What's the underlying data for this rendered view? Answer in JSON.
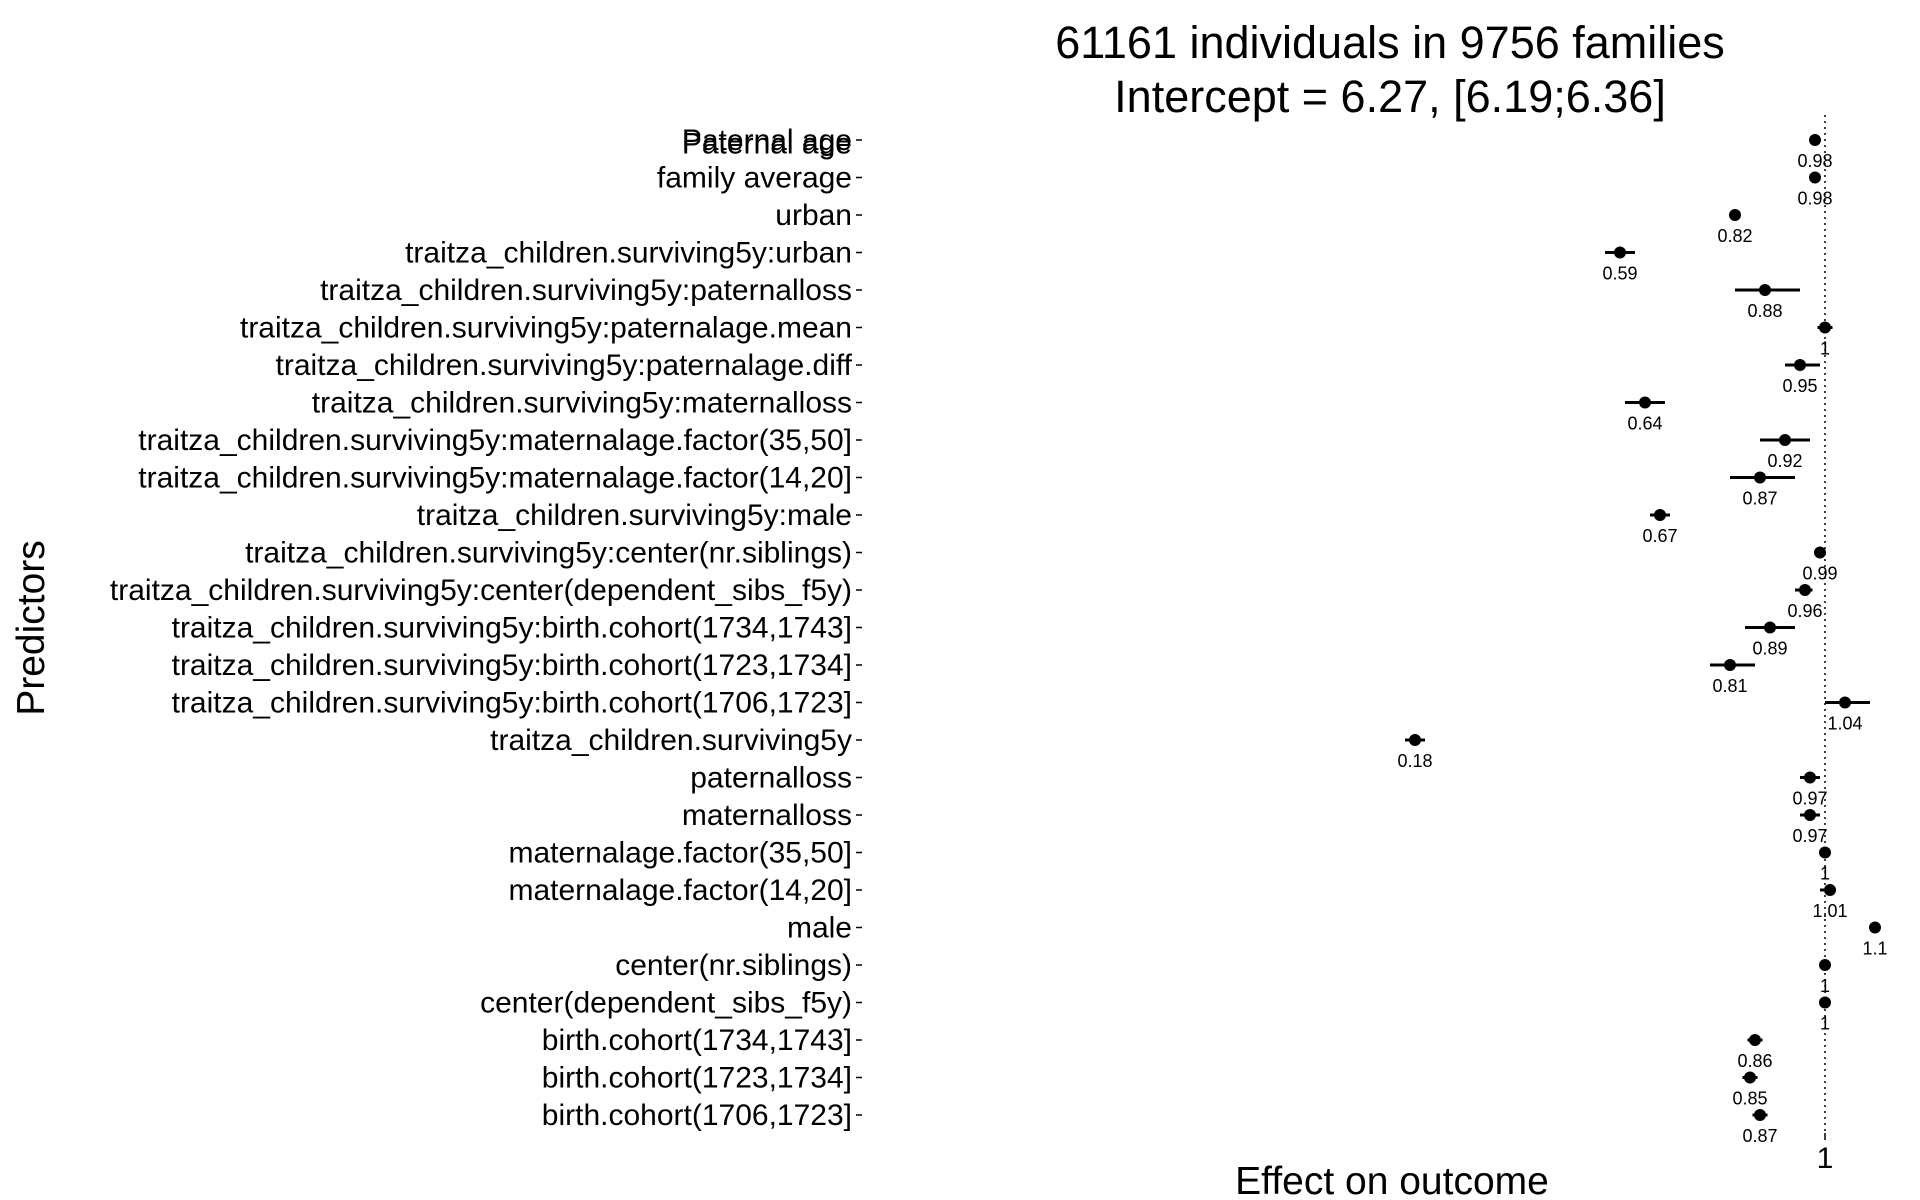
{
  "chart_data": {
    "type": "scatter",
    "title": [
      "61161 individuals in 9756 families",
      "Intercept = 6.27, [6.19;6.36]"
    ],
    "xlabel": "Effect on outcome",
    "ylabel": "Predictors",
    "x_ticks": [
      {
        "value": 1,
        "label": "1"
      }
    ],
    "reference_line": 1,
    "grid": false,
    "legend": "none",
    "series": [
      {
        "points": [
          {
            "label": "Paternal age",
            "value": 0.98,
            "value_label": "0.98",
            "lo": 0.975,
            "hi": 0.985
          },
          {
            "label": "Paternal age family average",
            "value": 0.98,
            "value_label": "0.98",
            "lo": 0.978,
            "hi": 0.982
          },
          {
            "label": "urban",
            "value": 0.82,
            "value_label": "0.82",
            "lo": 0.81,
            "hi": 0.83
          },
          {
            "label": "traitza_children.surviving5y:urban",
            "value": 0.59,
            "value_label": "0.59",
            "lo": 0.56,
            "hi": 0.62
          },
          {
            "label": "traitza_children.surviving5y:paternalloss",
            "value": 0.88,
            "value_label": "0.88",
            "lo": 0.82,
            "hi": 0.95
          },
          {
            "label": "traitza_children.surviving5y:paternalage.mean",
            "value": 1.0,
            "value_label": "1",
            "lo": 0.985,
            "hi": 1.015
          },
          {
            "label": "traitza_children.surviving5y:paternalage.diff",
            "value": 0.95,
            "value_label": "0.95",
            "lo": 0.92,
            "hi": 0.99
          },
          {
            "label": "traitza_children.surviving5y:maternalloss",
            "value": 0.64,
            "value_label": "0.64",
            "lo": 0.6,
            "hi": 0.68
          },
          {
            "label": "traitza_children.surviving5y:maternalage.factor(35,50]",
            "value": 0.92,
            "value_label": "0.92",
            "lo": 0.87,
            "hi": 0.97
          },
          {
            "label": "traitza_children.surviving5y:maternalage.factor(14,20]",
            "value": 0.87,
            "value_label": "0.87",
            "lo": 0.81,
            "hi": 0.94
          },
          {
            "label": "traitza_children.surviving5y:male",
            "value": 0.67,
            "value_label": "0.67",
            "lo": 0.65,
            "hi": 0.69
          },
          {
            "label": "traitza_children.surviving5y:center(nr.siblings)",
            "value": 0.99,
            "value_label": "0.99",
            "lo": 0.985,
            "hi": 0.995
          },
          {
            "label": "traitza_children.surviving5y:center(dependent_sibs_f5y)",
            "value": 0.96,
            "value_label": "0.96",
            "lo": 0.94,
            "hi": 0.975
          },
          {
            "label": "traitza_children.surviving5y:birth.cohort(1734,1743]",
            "value": 0.89,
            "value_label": "0.89",
            "lo": 0.84,
            "hi": 0.94
          },
          {
            "label": "traitza_children.surviving5y:birth.cohort(1723,1734]",
            "value": 0.81,
            "value_label": "0.81",
            "lo": 0.77,
            "hi": 0.86
          },
          {
            "label": "traitza_children.surviving5y:birth.cohort(1706,1723]",
            "value": 1.04,
            "value_label": "1.04",
            "lo": 1.0,
            "hi": 1.09
          },
          {
            "label": "traitza_children.surviving5y",
            "value": 0.18,
            "value_label": "0.18",
            "lo": 0.16,
            "hi": 0.2
          },
          {
            "label": "paternalloss",
            "value": 0.97,
            "value_label": "0.97",
            "lo": 0.95,
            "hi": 0.99
          },
          {
            "label": "maternalloss",
            "value": 0.97,
            "value_label": "0.97",
            "lo": 0.95,
            "hi": 0.99
          },
          {
            "label": "maternalage.factor(35,50]",
            "value": 1.0,
            "value_label": "1",
            "lo": 0.99,
            "hi": 1.01
          },
          {
            "label": "maternalage.factor(14,20]",
            "value": 1.01,
            "value_label": "1.01",
            "lo": 0.99,
            "hi": 1.02
          },
          {
            "label": "male",
            "value": 1.1,
            "value_label": "1.1",
            "lo": 1.095,
            "hi": 1.105
          },
          {
            "label": "center(nr.siblings)",
            "value": 1.0,
            "value_label": "1",
            "lo": 0.998,
            "hi": 1.002
          },
          {
            "label": "center(dependent_sibs_f5y)",
            "value": 1.0,
            "value_label": "1",
            "lo": 0.998,
            "hi": 1.002
          },
          {
            "label": "birth.cohort(1734,1743]",
            "value": 0.86,
            "value_label": "0.86",
            "lo": 0.845,
            "hi": 0.875
          },
          {
            "label": "birth.cohort(1723,1734]",
            "value": 0.85,
            "value_label": "0.85",
            "lo": 0.835,
            "hi": 0.865
          },
          {
            "label": "birth.cohort(1706,1723]",
            "value": 0.87,
            "value_label": "0.87",
            "lo": 0.855,
            "hi": 0.885
          }
        ]
      }
    ]
  },
  "display_labels": [
    [
      "Paternal age"
    ],
    [
      "Paternal age",
      "family average"
    ],
    [
      "urban"
    ],
    [
      "traitza_children.surviving5y:urban"
    ],
    [
      "traitza_children.surviving5y:paternalloss"
    ],
    [
      "traitza_children.surviving5y:paternalage.mean"
    ],
    [
      "traitza_children.surviving5y:paternalage.diff"
    ],
    [
      "traitza_children.surviving5y:maternalloss"
    ],
    [
      "traitza_children.surviving5y:maternalage.factor(35,50]"
    ],
    [
      "traitza_children.surviving5y:maternalage.factor(14,20]"
    ],
    [
      "traitza_children.surviving5y:male"
    ],
    [
      "traitza_children.surviving5y:center(nr.siblings)"
    ],
    [
      "traitza_children.surviving5y:center(dependent_sibs_f5y)"
    ],
    [
      "traitza_children.surviving5y:birth.cohort(1734,1743]"
    ],
    [
      "traitza_children.surviving5y:birth.cohort(1723,1734]"
    ],
    [
      "traitza_children.surviving5y:birth.cohort(1706,1723]"
    ],
    [
      "traitza_children.surviving5y"
    ],
    [
      "paternalloss"
    ],
    [
      "maternalloss"
    ],
    [
      "maternalage.factor(35,50]"
    ],
    [
      "maternalage.factor(14,20]"
    ],
    [
      "male"
    ],
    [
      "center(nr.siblings)"
    ],
    [
      "center(dependent_sibs_f5y)"
    ],
    [
      "birth.cohort(1734,1743]"
    ],
    [
      "birth.cohort(1723,1734]"
    ],
    [
      "birth.cohort(1706,1723]"
    ]
  ]
}
